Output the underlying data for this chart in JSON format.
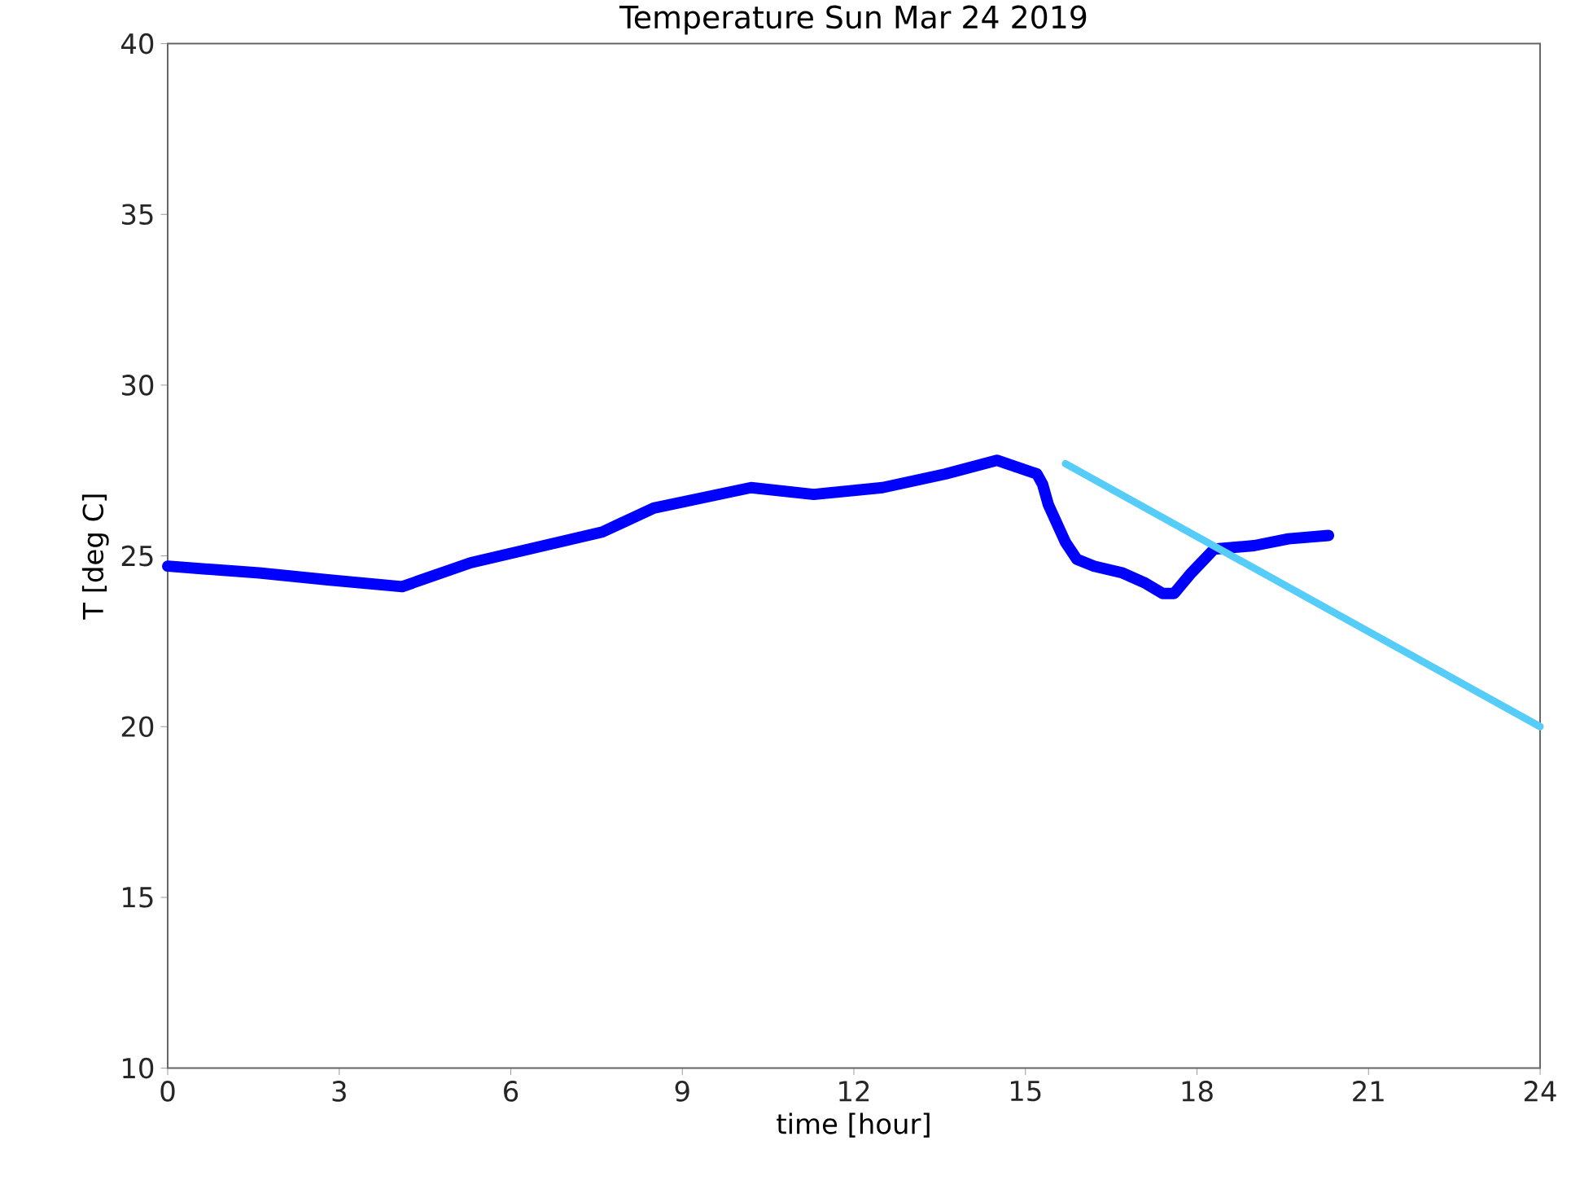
{
  "chart_data": {
    "type": "line",
    "title": "Temperature Sun Mar 24 2019",
    "xlabel": "time [hour]",
    "ylabel": "T [deg C]",
    "xlim": [
      0,
      24
    ],
    "xticks": [
      0,
      3,
      6,
      9,
      12,
      15,
      18,
      21,
      24
    ],
    "ylim": [
      10,
      40
    ],
    "yticks": [
      10,
      15,
      20,
      25,
      30,
      35,
      40
    ],
    "grid": false,
    "series": [
      {
        "color": "#0000ff",
        "x": [
          0,
          1.6,
          2.8,
          4.1,
          5.3,
          7.6,
          8.5,
          10.2,
          11.3,
          12.5,
          13.6,
          14.5,
          15.2,
          15.3,
          15.4,
          15.7,
          15.9,
          16.2,
          16.7,
          17.1,
          17.4,
          17.6,
          17.9,
          18.3,
          19.0,
          19.6,
          20.3
        ],
        "values": [
          24.7,
          24.5,
          24.3,
          24.1,
          24.8,
          25.7,
          26.4,
          27.0,
          26.8,
          27.0,
          27.4,
          27.8,
          27.4,
          27.1,
          26.5,
          25.4,
          24.9,
          24.7,
          24.5,
          24.2,
          23.9,
          23.9,
          24.5,
          25.2,
          25.3,
          25.5,
          25.6
        ]
      },
      {
        "color": "#56cdf9",
        "x": [
          15.7,
          24
        ],
        "values": [
          27.7,
          20.0
        ]
      }
    ]
  }
}
